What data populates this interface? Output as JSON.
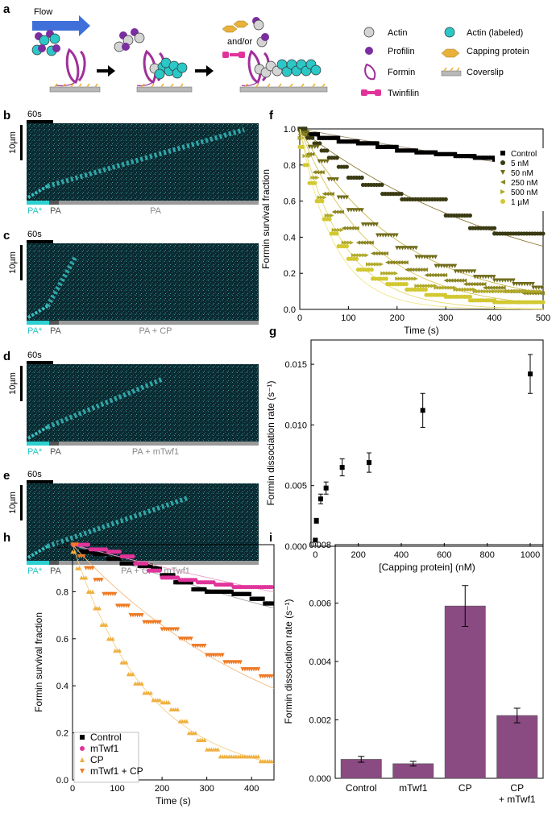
{
  "panel_labels": {
    "a": "a",
    "b": "b",
    "c": "c",
    "d": "d",
    "e": "e",
    "f": "f",
    "g": "g",
    "h": "h",
    "i": "i"
  },
  "schematic": {
    "flow": "Flow",
    "andor": "and/or",
    "legend": {
      "actin": "Actin",
      "actin_labeled": "Actin (labeled)",
      "profilin": "Profilin",
      "capping_protein": "Capping protein",
      "formin": "Formin",
      "coverslip": "Coverslip",
      "twinfilin": "Twinfilin"
    },
    "colors": {
      "actin": "#d4d4d4",
      "labeled": "#2cc7c7",
      "profilin": "#7a2ea0",
      "formin": "#a0309a",
      "cp": "#e8b13a",
      "twinfilin": "#e0349a",
      "coverslip": "#b8b8b8",
      "arrow": "#3f6fd8"
    }
  },
  "kymographs": [
    {
      "id": "b",
      "time_scale": "60s",
      "length_scale": "10µm",
      "label_star": "PA*",
      "label_pa": "PA",
      "label_condition": "PA"
    },
    {
      "id": "c",
      "time_scale": "60s",
      "length_scale": "10µm",
      "label_star": "PA*",
      "label_pa": "PA",
      "label_condition": "PA + CP"
    },
    {
      "id": "d",
      "time_scale": "60s",
      "length_scale": "10µm",
      "label_star": "PA*",
      "label_pa": "PA",
      "label_condition": "PA + mTwf1"
    },
    {
      "id": "e",
      "time_scale": "60s",
      "length_scale": "10µm",
      "label_star": "PA*",
      "label_pa": "PA",
      "label_condition": "PA + CP + mTwf1"
    }
  ],
  "chart_data": [
    {
      "id": "f",
      "type": "scatter",
      "xlabel": "Time (s)",
      "ylabel": "Formin survival fraction",
      "xlim": [
        0,
        500
      ],
      "ylim": [
        0,
        1.0
      ],
      "xticks": [
        "0",
        "100",
        "200",
        "300",
        "400",
        "500"
      ],
      "yticks": [
        "0.0",
        "0.2",
        "0.4",
        "0.6",
        "0.8",
        "1.0"
      ],
      "legend_position": "right",
      "series": [
        {
          "name": "Control",
          "color": "#000000",
          "marker": "square",
          "fit_rate": 0.0005,
          "fit_color": "#9a8a6a",
          "step_x": [
            0,
            15,
            40,
            80,
            120,
            160,
            200,
            240,
            280,
            320,
            360,
            400,
            440,
            480,
            500
          ],
          "step_y": [
            1.0,
            0.97,
            0.95,
            0.93,
            0.92,
            0.9,
            0.88,
            0.87,
            0.86,
            0.85,
            0.84,
            0.83,
            0.82,
            0.8,
            0.78
          ]
        },
        {
          "name": "5 nM",
          "color": "#3a3a12",
          "marker": "circle",
          "fit_rate": 0.0021,
          "fit_color": "#8a7a3a",
          "step_x": [
            0,
            15,
            30,
            45,
            60,
            80,
            100,
            130,
            170,
            210,
            250,
            300,
            350,
            400,
            450,
            500
          ],
          "step_y": [
            1.0,
            0.95,
            0.92,
            0.88,
            0.84,
            0.79,
            0.73,
            0.69,
            0.64,
            0.61,
            0.61,
            0.52,
            0.45,
            0.42,
            0.42,
            0.42
          ]
        },
        {
          "name": "50 nM",
          "color": "#6e6a18",
          "marker": "triangle-down",
          "fit_rate": 0.0048,
          "fit_color": "#c8b44a",
          "step_x": [
            0,
            20,
            40,
            60,
            80,
            100,
            130,
            160,
            200,
            240,
            280,
            320,
            360,
            400,
            440,
            480,
            500
          ],
          "step_y": [
            0.98,
            0.9,
            0.82,
            0.72,
            0.62,
            0.55,
            0.47,
            0.41,
            0.34,
            0.29,
            0.24,
            0.21,
            0.18,
            0.16,
            0.14,
            0.12,
            0.1
          ]
        },
        {
          "name": "250 nM",
          "color": "#8a8420",
          "marker": "triangle-left",
          "fit_rate": 0.0069,
          "fit_color": "#d8c45a",
          "step_x": [
            0,
            15,
            30,
            50,
            70,
            90,
            120,
            150,
            180,
            220,
            260,
            300,
            340,
            380,
            420,
            460,
            500
          ],
          "step_y": [
            0.97,
            0.86,
            0.76,
            0.64,
            0.54,
            0.45,
            0.37,
            0.31,
            0.26,
            0.22,
            0.19,
            0.16,
            0.14,
            0.12,
            0.1,
            0.09,
            0.08
          ]
        },
        {
          "name": "500 nM",
          "color": "#b0a828",
          "marker": "triangle-right",
          "fit_rate": 0.0112,
          "fit_color": "#e8d870",
          "step_x": [
            0,
            10,
            25,
            40,
            55,
            70,
            90,
            110,
            140,
            170,
            200,
            240,
            280,
            320,
            360,
            400,
            440,
            500
          ],
          "step_y": [
            0.95,
            0.85,
            0.73,
            0.62,
            0.52,
            0.44,
            0.37,
            0.3,
            0.25,
            0.2,
            0.17,
            0.13,
            0.12,
            0.11,
            0.1,
            0.1,
            0.1,
            0.1
          ]
        },
        {
          "name": "1 µM",
          "color": "#d2c830",
          "marker": "circle",
          "fit_rate": 0.0142,
          "fit_color": "#f0e68a",
          "step_x": [
            0,
            10,
            20,
            35,
            50,
            65,
            80,
            100,
            120,
            150,
            180,
            220,
            260,
            300,
            350,
            400,
            450,
            500
          ],
          "step_y": [
            0.9,
            0.8,
            0.7,
            0.6,
            0.5,
            0.42,
            0.35,
            0.28,
            0.22,
            0.17,
            0.14,
            0.11,
            0.08,
            0.07,
            0.05,
            0.04,
            0.04,
            0.04
          ]
        }
      ]
    },
    {
      "id": "g",
      "type": "scatter",
      "xlabel": "[Capping protein] (nM)",
      "ylabel": "Formin dissociation rate (s⁻¹)",
      "xlim": [
        -20,
        1060
      ],
      "ylim": [
        0,
        0.017
      ],
      "xticks": [
        "0",
        "200",
        "400",
        "600",
        "800",
        "1000"
      ],
      "yticks": [
        "0.000",
        "0.005",
        "0.010",
        "0.015"
      ],
      "x": [
        0,
        5,
        25,
        50,
        125,
        250,
        500,
        1000
      ],
      "y": [
        0.0005,
        0.0021,
        0.0039,
        0.0048,
        0.0065,
        0.0069,
        0.0112,
        0.0142
      ],
      "err": [
        0.0001,
        0.0002,
        0.0004,
        0.0005,
        0.0007,
        0.0008,
        0.0014,
        0.0016
      ]
    },
    {
      "id": "h",
      "type": "scatter",
      "xlabel": "Time (s)",
      "ylabel": "Formin survival fraction",
      "xlim": [
        0,
        450
      ],
      "ylim": [
        0,
        1.0
      ],
      "xticks": [
        "0",
        "100",
        "200",
        "300",
        "400"
      ],
      "yticks": [
        "0.0",
        "0.2",
        "0.4",
        "0.6",
        "0.8",
        "1.0"
      ],
      "legend_position": "bottom-left",
      "series": [
        {
          "name": "Control",
          "color": "#000000",
          "marker": "square",
          "fit_rate": 0.0007,
          "fit_color": "#a0a0a0",
          "step_x": [
            0,
            20,
            50,
            80,
            110,
            150,
            180,
            200,
            230,
            270,
            300,
            330,
            360,
            400,
            430,
            450
          ],
          "step_y": [
            1.0,
            0.97,
            0.96,
            0.94,
            0.92,
            0.91,
            0.9,
            0.87,
            0.84,
            0.81,
            0.8,
            0.8,
            0.79,
            0.77,
            0.75,
            0.74
          ]
        },
        {
          "name": "mTwf1",
          "color": "#e0349a",
          "marker": "circle",
          "fit_rate": 0.0005,
          "fit_color": "#f0a0cc",
          "step_x": [
            0,
            40,
            80,
            110,
            140,
            170,
            200,
            240,
            280,
            320,
            360,
            400,
            450
          ],
          "step_y": [
            1.0,
            0.98,
            0.97,
            0.95,
            0.92,
            0.89,
            0.86,
            0.85,
            0.84,
            0.83,
            0.82,
            0.82,
            0.82
          ]
        },
        {
          "name": "CP",
          "color": "#f0b040",
          "marker": "triangle-up",
          "fit_rate": 0.0059,
          "fit_color": "#f6cf8a",
          "step_x": [
            0,
            10,
            20,
            35,
            50,
            65,
            80,
            95,
            110,
            125,
            140,
            160,
            180,
            200,
            220,
            240,
            260,
            280,
            300,
            330,
            360,
            390,
            420,
            450
          ],
          "step_y": [
            0.97,
            0.9,
            0.86,
            0.8,
            0.73,
            0.66,
            0.6,
            0.55,
            0.5,
            0.45,
            0.41,
            0.37,
            0.34,
            0.33,
            0.3,
            0.25,
            0.2,
            0.17,
            0.13,
            0.1,
            0.1,
            0.1,
            0.08,
            0.06
          ]
        },
        {
          "name": "mTwf1 + CP",
          "color": "#ee7a24",
          "marker": "triangle-down",
          "fit_rate": 0.0021,
          "fit_color": "#f4b880",
          "step_x": [
            0,
            15,
            30,
            50,
            70,
            100,
            130,
            160,
            200,
            240,
            270,
            300,
            340,
            380,
            420,
            450
          ],
          "step_y": [
            1.0,
            0.95,
            0.9,
            0.85,
            0.79,
            0.74,
            0.7,
            0.67,
            0.64,
            0.6,
            0.57,
            0.53,
            0.5,
            0.47,
            0.44,
            0.4
          ]
        }
      ]
    },
    {
      "id": "i",
      "type": "bar",
      "ylabel": "Formin dissociation rate (s⁻¹)",
      "ylim": [
        0,
        0.008
      ],
      "yticks": [
        "0.000",
        "0.002",
        "0.004",
        "0.006",
        "0.008"
      ],
      "categories": [
        "Control",
        "mTwf1",
        "CP",
        "CP\n+ mTwf1"
      ],
      "category_lines": [
        [
          "Control"
        ],
        [
          "mTwf1"
        ],
        [
          "CP"
        ],
        [
          "CP",
          "+ mTwf1"
        ]
      ],
      "values": [
        0.00065,
        0.0005,
        0.0059,
        0.00215
      ],
      "err": [
        0.0001,
        8e-05,
        0.0007,
        0.00025
      ],
      "color": "#8a4a82"
    }
  ]
}
